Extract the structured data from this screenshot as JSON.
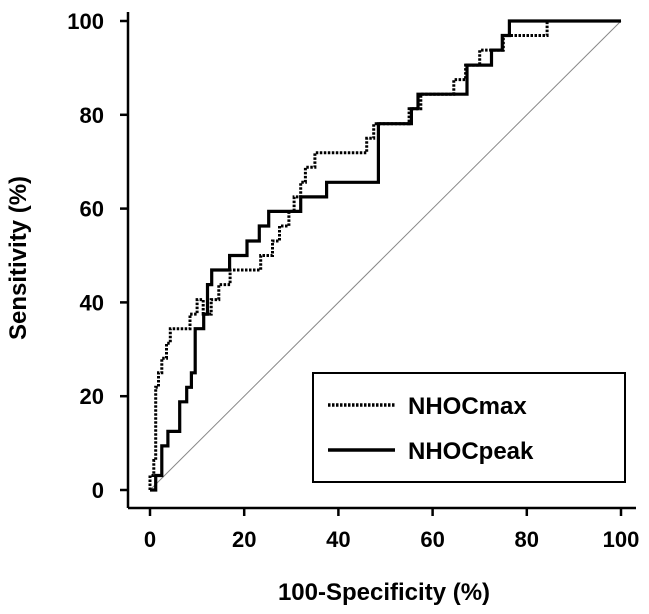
{
  "chart_data": {
    "type": "line",
    "title": "",
    "xlabel": "100-Specificity (%)",
    "ylabel": "Sensitivity (%)",
    "xlim": [
      0,
      100
    ],
    "ylim": [
      0,
      100
    ],
    "xticks": [
      "0",
      "20",
      "40",
      "60",
      "80",
      "100"
    ],
    "yticks": [
      "0",
      "20",
      "40",
      "60",
      "80",
      "100"
    ],
    "grid": false,
    "legend_position": "bottom-right",
    "diagonal_reference": {
      "x": [
        0,
        100
      ],
      "y": [
        0,
        100
      ],
      "color": "#888888"
    },
    "series": [
      {
        "name": "NHOCmax",
        "style": "dotted",
        "color": "#000000",
        "x": [
          0,
          0,
          0.8,
          0.8,
          1.2,
          1.2,
          1.8,
          1.8,
          2.5,
          2.5,
          3.5,
          3.5,
          4.3,
          4.3,
          5.5,
          5.5,
          8.5,
          8.5,
          10.0,
          10.0,
          11.3,
          11.3,
          13.0,
          13.0,
          14.6,
          14.6,
          16.0,
          16.0,
          17.0,
          17.0,
          23.5,
          23.5,
          26.0,
          26.0,
          27.5,
          27.5,
          29.5,
          29.5,
          30.6,
          30.6,
          32.0,
          32.0,
          33.0,
          33.0,
          35.0,
          35.0,
          46.0,
          46.0,
          47.5,
          47.5,
          50.2,
          50.2,
          55.0,
          55.0,
          57.5,
          57.5,
          62.0,
          62.0,
          64.5,
          64.5,
          67.0,
          67.0,
          70.0,
          70.0,
          72.0,
          72.0,
          75.0,
          75.0,
          77.0,
          77.0,
          84.3,
          84.3,
          100
        ],
        "y": [
          0,
          3.1,
          3.1,
          6.3,
          6.3,
          21.9,
          21.9,
          25.0,
          25.0,
          28.1,
          28.1,
          31.3,
          31.3,
          34.4,
          34.4,
          34.4,
          34.4,
          37.5,
          37.5,
          40.6,
          40.6,
          37.5,
          37.5,
          40.6,
          40.6,
          43.8,
          43.8,
          43.8,
          43.8,
          46.9,
          46.9,
          50.0,
          50.0,
          53.1,
          53.1,
          56.3,
          56.3,
          59.4,
          59.4,
          62.5,
          62.5,
          65.6,
          65.6,
          68.8,
          68.8,
          71.9,
          71.9,
          75.0,
          75.0,
          78.1,
          78.1,
          78.1,
          78.1,
          81.3,
          81.3,
          84.4,
          84.4,
          84.4,
          84.4,
          87.5,
          87.5,
          90.6,
          90.6,
          93.8,
          93.8,
          93.8,
          93.8,
          96.9,
          96.9,
          96.9,
          96.9,
          100,
          100
        ]
      },
      {
        "name": "NHOCpeak",
        "style": "solid",
        "color": "#000000",
        "x": [
          0,
          1.2,
          1.2,
          2.5,
          2.5,
          3.8,
          3.8,
          6.3,
          6.3,
          7.8,
          7.8,
          8.8,
          8.8,
          9.6,
          9.6,
          11.4,
          11.4,
          12.2,
          12.2,
          13.1,
          13.1,
          16.9,
          16.9,
          20.6,
          20.6,
          23.2,
          23.2,
          25.2,
          25.2,
          26.4,
          26.4,
          32.0,
          32.0,
          37.5,
          37.5,
          48.5,
          48.5,
          51.2,
          51.2,
          55.5,
          55.5,
          56.9,
          56.9,
          66.0,
          66.0,
          67.3,
          67.3,
          69.7,
          69.7,
          72.5,
          72.5,
          74.8,
          74.8,
          76.3,
          76.3,
          100
        ],
        "y": [
          0,
          0,
          3.1,
          3.1,
          9.4,
          9.4,
          12.5,
          12.5,
          18.8,
          18.8,
          21.9,
          21.9,
          25.0,
          25.0,
          34.4,
          34.4,
          37.5,
          37.5,
          43.8,
          43.8,
          46.9,
          46.9,
          50.0,
          50.0,
          53.1,
          53.1,
          56.3,
          56.3,
          59.4,
          59.4,
          59.4,
          59.4,
          62.5,
          62.5,
          65.6,
          65.6,
          78.1,
          78.1,
          78.1,
          78.1,
          81.3,
          81.3,
          84.4,
          84.4,
          84.4,
          84.4,
          90.6,
          90.6,
          90.6,
          90.6,
          93.8,
          93.8,
          96.9,
          96.9,
          100,
          100
        ]
      }
    ]
  }
}
